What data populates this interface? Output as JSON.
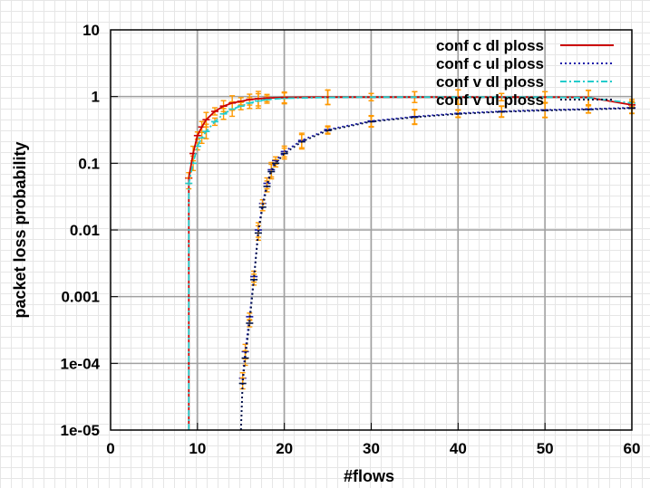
{
  "chart_data": {
    "type": "line",
    "title": "",
    "xlabel": "#flows",
    "ylabel": "packet loss probability",
    "xlim": [
      0,
      60
    ],
    "ylim": [
      1e-05,
      10
    ],
    "y_scale": "log",
    "grid": true,
    "legend_position": "top-right",
    "x_ticks": [
      "0",
      "10",
      "20",
      "30",
      "40",
      "50",
      "60"
    ],
    "y_ticks": [
      "1e-05",
      "1e-04",
      "0.001",
      "0.01",
      "0.1",
      "1",
      "10"
    ],
    "error_bar_color": "#ff9900",
    "series": [
      {
        "name": "conf c dl ploss",
        "color": "#cc0000",
        "dash": "solid",
        "x": [
          9,
          9,
          9.5,
          10,
          10.5,
          11,
          12,
          13,
          14,
          15,
          16,
          17,
          18,
          20,
          25,
          30,
          35,
          40,
          45,
          50,
          55,
          60
        ],
        "y": [
          1e-05,
          0.06,
          0.14,
          0.26,
          0.35,
          0.45,
          0.6,
          0.72,
          0.8,
          0.85,
          0.9,
          0.93,
          0.95,
          0.97,
          0.98,
          0.98,
          0.98,
          0.98,
          0.98,
          0.98,
          0.97,
          0.75
        ]
      },
      {
        "name": "conf c ul ploss",
        "color": "#1a1aaa",
        "dash": "dotted",
        "x": [
          15,
          15.2,
          15.5,
          16,
          16.5,
          17,
          17.5,
          18,
          18.5,
          19,
          20,
          22,
          25,
          30,
          35,
          40,
          45,
          50,
          55,
          60
        ],
        "y": [
          1e-05,
          6e-05,
          0.00015,
          0.0005,
          0.002,
          0.01,
          0.025,
          0.05,
          0.08,
          0.11,
          0.15,
          0.22,
          0.32,
          0.43,
          0.5,
          0.56,
          0.6,
          0.63,
          0.65,
          0.68
        ]
      },
      {
        "name": "conf v dl ploss",
        "color": "#22cccc",
        "dash": "dashdot",
        "x": [
          9,
          9,
          9.5,
          10,
          10.5,
          11,
          12,
          13,
          14,
          15,
          16,
          17,
          18,
          20,
          25,
          30,
          35,
          40,
          45,
          50,
          55,
          60
        ],
        "y": [
          1e-05,
          0.05,
          0.1,
          0.18,
          0.24,
          0.3,
          0.42,
          0.55,
          0.65,
          0.72,
          0.8,
          0.86,
          0.9,
          0.94,
          0.97,
          0.98,
          0.98,
          0.98,
          0.98,
          0.98,
          0.96,
          0.8
        ]
      },
      {
        "name": "conf v ul ploss",
        "color": "#001144",
        "dash": "dotted",
        "x": [
          15,
          15.2,
          15.5,
          16,
          16.5,
          17,
          17.5,
          18,
          18.5,
          19,
          20,
          22,
          25,
          30,
          35,
          40,
          45,
          50,
          55,
          60
        ],
        "y": [
          1e-05,
          5e-05,
          0.00012,
          0.0004,
          0.0018,
          0.009,
          0.022,
          0.045,
          0.075,
          0.1,
          0.14,
          0.21,
          0.31,
          0.42,
          0.49,
          0.55,
          0.59,
          0.62,
          0.64,
          0.67
        ]
      }
    ]
  }
}
